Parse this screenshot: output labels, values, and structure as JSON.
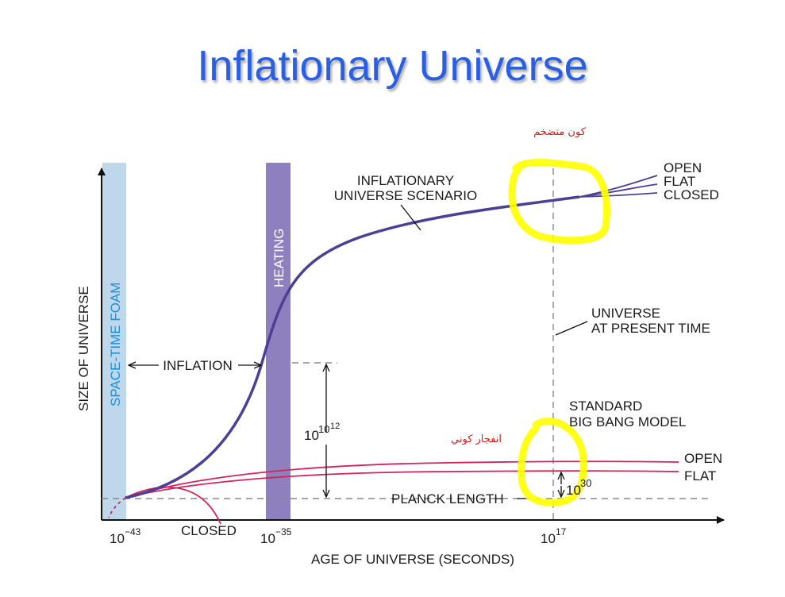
{
  "title": "Inflationary Universe",
  "colors": {
    "title": "#2a5fe0",
    "inflation_curve": "#4e3f96",
    "bigbang_curve": "#d2245b",
    "spacetime_band": "#bed7ea",
    "heating_band": "#8e7fbe",
    "highlight": "#ffff00",
    "arabic_text": "#d81b1b"
  },
  "bands": {
    "spacetime_foam": "SPACE-TIME FOAM",
    "heating": "HEATING"
  },
  "axes": {
    "y_label": "SIZE OF UNIVERSE",
    "x_label": "AGE OF UNIVERSE (SECONDS)",
    "ticks": [
      {
        "base": "10",
        "exp": "−43"
      },
      {
        "base": "10",
        "exp": "−35"
      },
      {
        "base": "10",
        "exp": "17"
      }
    ]
  },
  "labels": {
    "inflationary_scenario_1": "INFLATIONARY",
    "inflationary_scenario_2": "UNIVERSE SCENARIO",
    "top_open": "OPEN",
    "top_flat": "FLAT",
    "top_closed": "CLOSED",
    "inflation": "INFLATION",
    "present_1": "UNIVERSE",
    "present_2": "AT PRESENT TIME",
    "standard_1": "STANDARD",
    "standard_2": "BIG BANG MODEL",
    "bottom_open": "OPEN",
    "bottom_flat": "FLAT",
    "closed": "CLOSED",
    "planck": "PLANCK LENGTH",
    "growth_base": "10",
    "growth_exp": "10",
    "growth_exp2": "12",
    "size_base": "10",
    "size_exp": "30"
  },
  "annotations": {
    "expanding_universe": "كون متضخم",
    "big_bang": "انفجار كوني"
  }
}
